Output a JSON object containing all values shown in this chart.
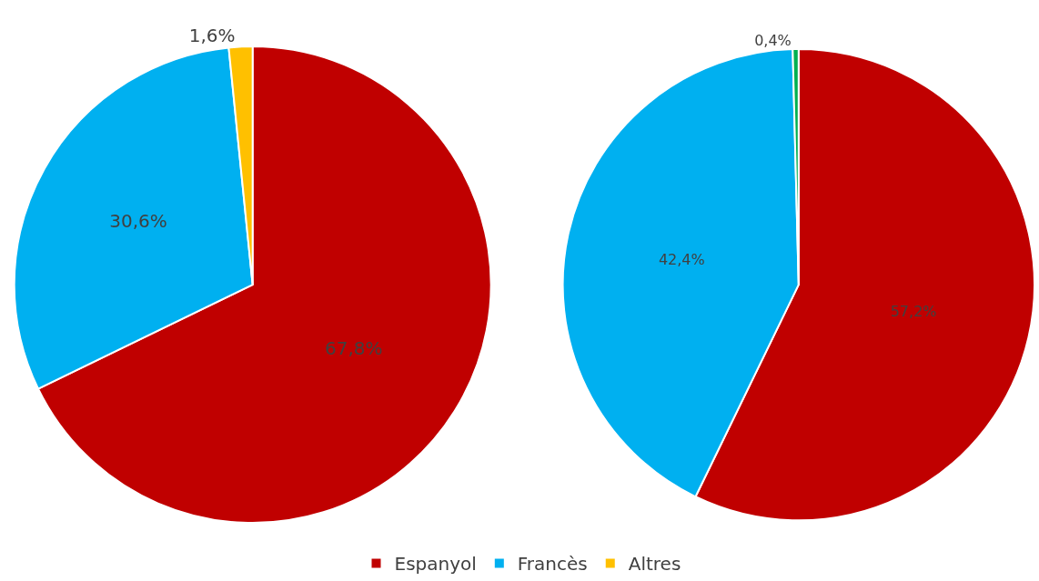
{
  "chart_data": [
    {
      "type": "pie",
      "categories": [
        "Espanyol",
        "Francès",
        "Altres"
      ],
      "values": [
        67.8,
        30.6,
        1.6
      ],
      "colors": [
        "#c00000",
        "#00b0f0",
        "#ffc000"
      ],
      "value_labels": [
        "67,8%",
        "30,6%",
        "1,6%"
      ],
      "legend": "bottom"
    },
    {
      "type": "pie",
      "categories": [
        null,
        null,
        null
      ],
      "values": [
        57.2,
        42.4,
        0.4
      ],
      "colors": [
        "#c00000",
        "#00b0f0",
        "#00b050"
      ],
      "value_labels": [
        "57,2%",
        "42,4%",
        "0,4%"
      ]
    }
  ]
}
